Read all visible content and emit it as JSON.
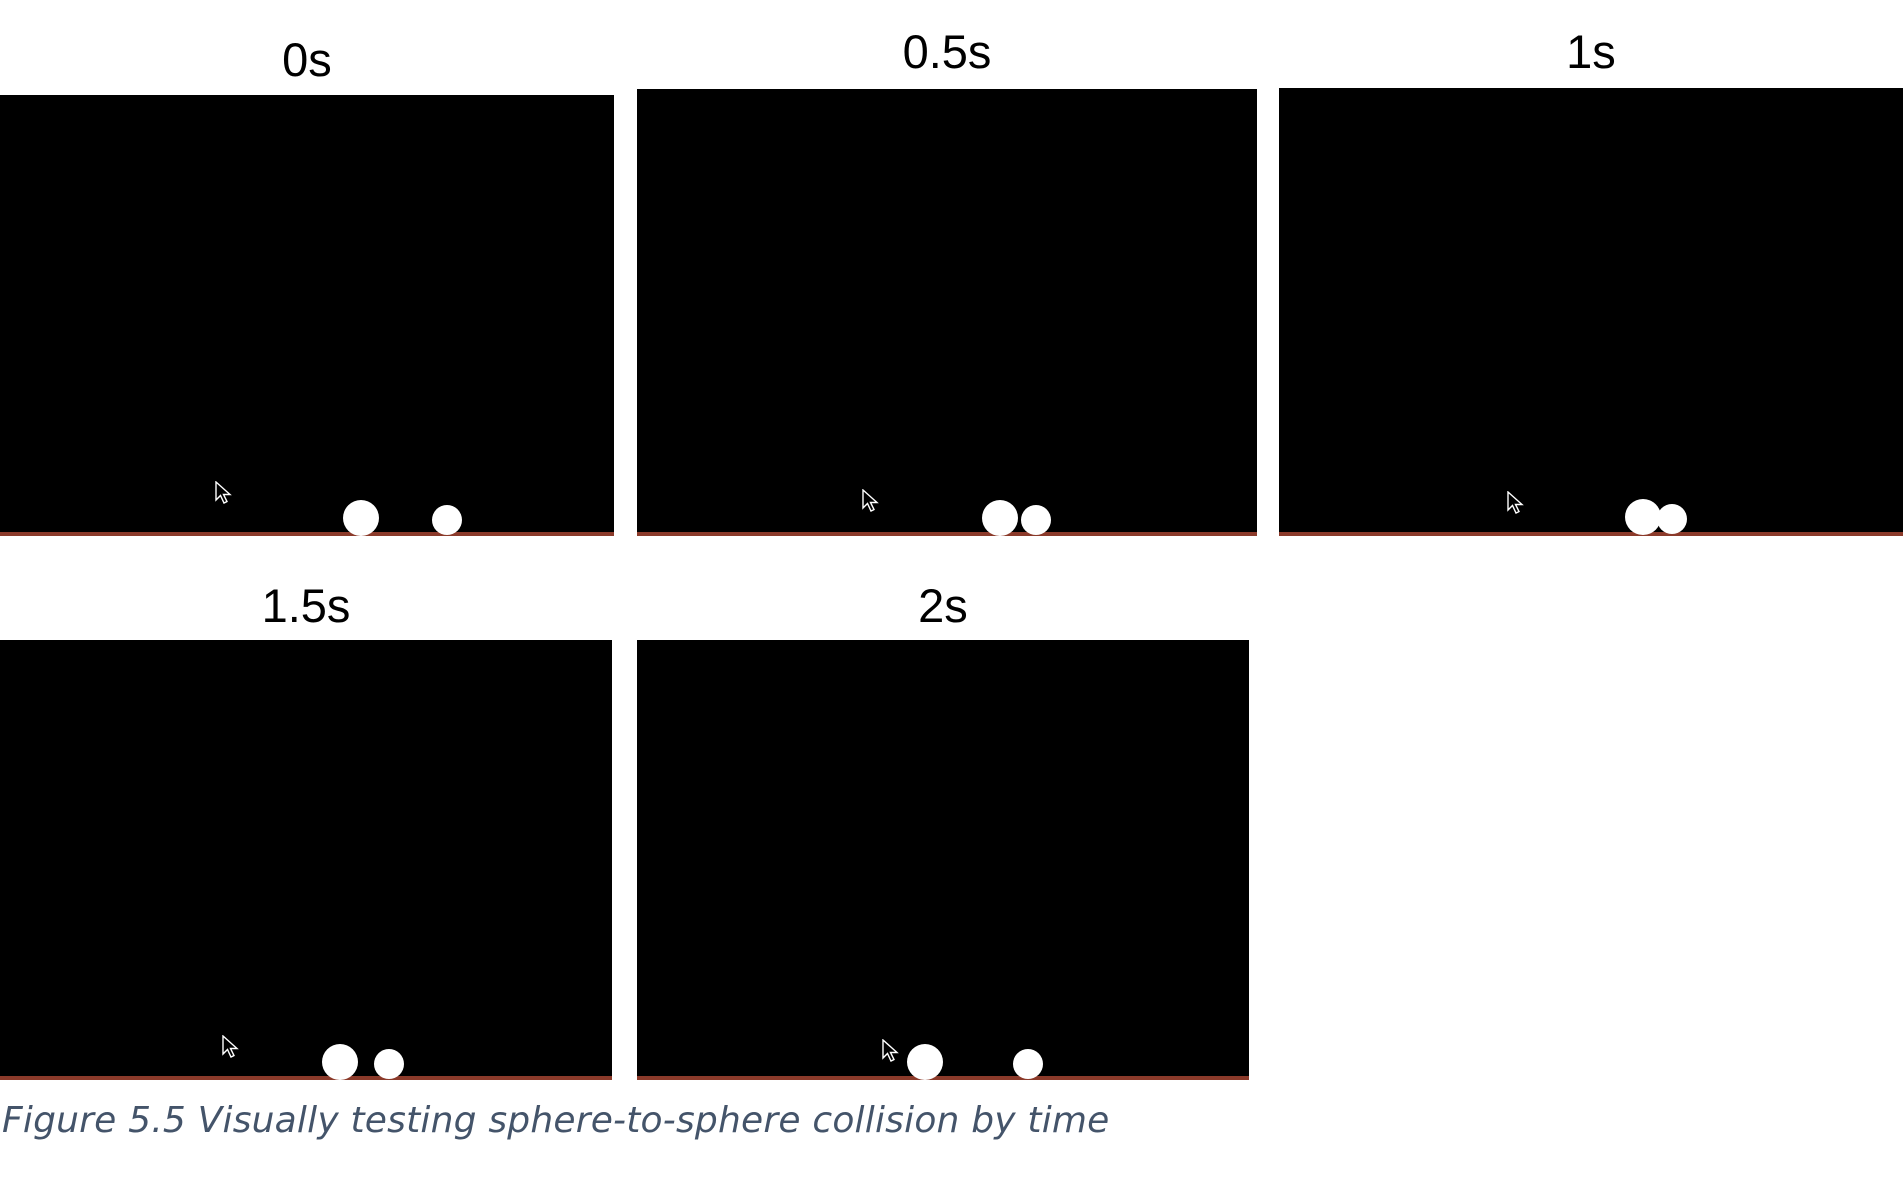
{
  "frames": [
    {
      "label": "0s"
    },
    {
      "label": "0.5s"
    },
    {
      "label": "1s"
    },
    {
      "label": "1.5s"
    },
    {
      "label": "2s"
    }
  ],
  "caption": "Figure 5.5 Visually testing sphere-to-sphere collision by time",
  "icons": {
    "cursor": "mouse-pointer-icon"
  },
  "colors": {
    "screen": "#000000",
    "sphere": "#ffffff",
    "caption": "#44546a"
  }
}
